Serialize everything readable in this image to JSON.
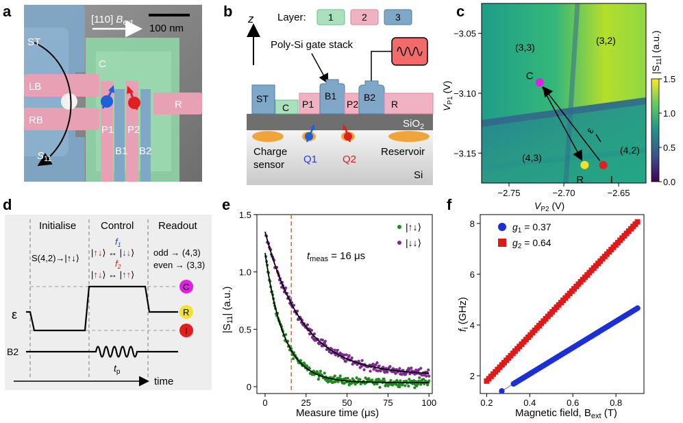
{
  "panels": {
    "a": "a",
    "b": "b",
    "c": "c",
    "d": "d",
    "e": "e",
    "f": "f"
  },
  "panel_a": {
    "field_dir": "[110]",
    "field_sym": "B",
    "field_sub": "ext",
    "scalebar": "100 nm",
    "labels": {
      "st": "ST",
      "c": "C",
      "lb": "LB",
      "rb": "RB",
      "s11": "S",
      "s11_sub": "11",
      "p1": "P1",
      "p2": "P2",
      "b1": "B1",
      "b2": "B2",
      "r": "R"
    },
    "colors": {
      "layer1": "#8fd6a8",
      "layer2": "#e8a0b4",
      "layer3": "#7ea7c8",
      "spin_up": "#1f5fd8",
      "spin_down": "#e02020"
    }
  },
  "panel_b": {
    "axis": "z",
    "layer_title": "Layer:",
    "layers": [
      "1",
      "2",
      "3"
    ],
    "gate_stack": "Poly-Si gate stack",
    "gates": {
      "st": "ST",
      "c": "C",
      "p1": "P1",
      "b1": "B1",
      "p2": "P2",
      "b2": "B2",
      "r": "R"
    },
    "oxide": "SiO",
    "oxide_sub": "2",
    "charge_sensor": [
      "Charge",
      "sensor"
    ],
    "reservoir": "Reservoir",
    "si": "Si",
    "q1": "Q1",
    "q2": "Q2"
  },
  "panel_c": {
    "regions": [
      "(3,3)",
      "(3,2)",
      "(4,3)",
      "(4,2)"
    ],
    "points": {
      "c": "C",
      "r": "R",
      "i": "I",
      "eps": "ε"
    },
    "colors": {
      "c": "#e020e0",
      "r": "#f2e22a",
      "i": "#e02020"
    }
  },
  "panel_d": {
    "phases": [
      "Initialise",
      "Control",
      "Readout"
    ],
    "init_text": "S(4,2)→|↑↓⟩",
    "f1": "f",
    "f1_sub": "1",
    "f2": "f",
    "f2_sub": "2",
    "readout_odd": "odd → (4,3)",
    "readout_even": "even → (3,3)",
    "eps": "ε",
    "b2": "B2",
    "tp": "t",
    "tp_sub": "p",
    "time": "time",
    "markers": [
      "C",
      "R",
      "I"
    ]
  },
  "chart_data": [
    {
      "type": "heatmap",
      "panel": "c",
      "xlabel": "V",
      "xlabel_sub": "P2",
      "xlabel_unit": "(V)",
      "ylabel": "V",
      "ylabel_sub": "P1",
      "ylabel_unit": "(V)",
      "xlim": [
        -2.775,
        -2.625
      ],
      "ylim": [
        -3.175,
        -3.025
      ],
      "xticks": [
        -2.75,
        -2.7,
        -2.65
      ],
      "xtick_labels": [
        "−2.75",
        "−2.70",
        "−2.65"
      ],
      "yticks": [
        -3.05,
        -3.1,
        -3.15
      ],
      "ytick_labels": [
        "−3.05",
        "−3.10",
        "−3.15"
      ],
      "colorbar": {
        "label": "|S",
        "label_sub": "11",
        "label_unit": "| (a.u.)",
        "range": [
          0.0,
          1.5
        ],
        "ticks": [
          0.0,
          0.5,
          1.0,
          1.5
        ],
        "tick_labels": [
          "0.0",
          "0.5",
          "1.0",
          "1.5"
        ]
      },
      "points": [
        {
          "name": "C",
          "x": -2.722,
          "y": -3.091
        },
        {
          "name": "R",
          "x": -2.681,
          "y": -3.16
        },
        {
          "name": "I",
          "x": -2.664,
          "y": -3.16
        }
      ]
    },
    {
      "type": "scatter",
      "panel": "e",
      "xlabel": "Measure time (μs)",
      "ylabel": "|S",
      "ylabel_sub": "11",
      "ylabel_unit": "| (a.u.)",
      "xlim": [
        -5,
        102
      ],
      "ylim": [
        -0.06,
        1.5
      ],
      "xticks": [
        0,
        25,
        50,
        75,
        100
      ],
      "yticks": [
        0,
        0.5,
        1.0,
        1.5
      ],
      "ytick_labels": [
        "0",
        "0.5",
        "1.0",
        "1.5"
      ],
      "tmeas_label": "t",
      "tmeas_sub": "meas",
      "tmeas_text": " = 16 μs",
      "tmeas": 16,
      "series": [
        {
          "name": "|↑↓⟩",
          "color": "#1e8a1e",
          "A": 1.13,
          "tau": 11.5,
          "offset": 0.035
        },
        {
          "name": "|↓↓⟩",
          "color": "#7b2a8f",
          "A": 1.25,
          "tau": 23.0,
          "offset": 0.1
        }
      ]
    },
    {
      "type": "scatter",
      "panel": "f",
      "xlabel": "Magnetic field, B",
      "xlabel_sub": "ext",
      "xlabel_unit": " (T)",
      "ylabel": "f",
      "ylabel_sub": "i",
      "ylabel_unit": " (GHz)",
      "xlim": [
        0.17,
        0.93
      ],
      "ylim": [
        1.3,
        8.35
      ],
      "xticks": [
        0.2,
        0.4,
        0.6,
        0.8
      ],
      "yticks": [
        2,
        4,
        6,
        8
      ],
      "series": [
        {
          "name": "g",
          "sub": "1",
          "value": " = 0.37",
          "g": 0.37,
          "color": "#1c2fd6",
          "marker": "circle",
          "x_range": [
            0.27,
            0.9
          ]
        },
        {
          "name": "g",
          "sub": "2",
          "value": " = 0.64",
          "g": 0.64,
          "color": "#e01818",
          "marker": "square",
          "x_range": [
            0.2,
            0.9
          ]
        }
      ]
    }
  ]
}
